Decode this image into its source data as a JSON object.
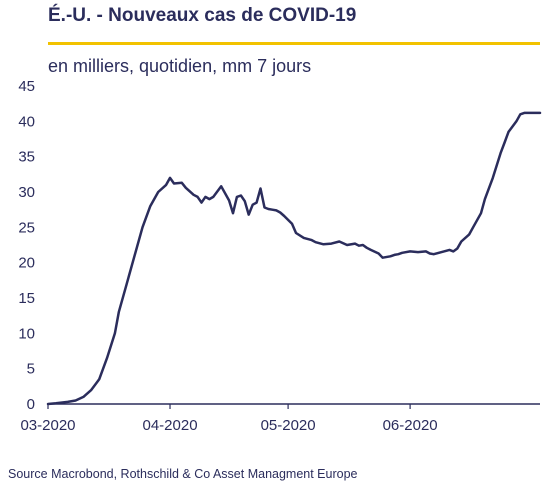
{
  "header": {
    "title": "É.-U. - Nouveaux cas de COVID-19",
    "subtitle": "en milliers, quotidien, mm 7 jours"
  },
  "footer": {
    "source": "Source Macrobond, Rothschild & Co Asset Managment Europe"
  },
  "colors": {
    "line": "#2b2d5c",
    "accent_rule": "#f2c200",
    "text": "#2b2d5c"
  },
  "chart_data": {
    "type": "line",
    "title": "É.-U. - Nouveaux cas de COVID-19",
    "subtitle": "en milliers, quotidien, mm 7 jours",
    "xlabel": "",
    "ylabel": "",
    "x_ticks": [
      "03-2020",
      "04-2020",
      "05-2020",
      "06-2020"
    ],
    "x_tick_dates": [
      "2020-03-01",
      "2020-04-01",
      "2020-05-01",
      "2020-06-01"
    ],
    "ylim": [
      0,
      45
    ],
    "y_ticks": [
      0,
      5,
      10,
      15,
      20,
      25,
      30,
      35,
      40,
      45
    ],
    "grid": false,
    "legend": "none",
    "series": [
      {
        "name": "",
        "x": [
          "2020-03-01",
          "2020-03-03",
          "2020-03-06",
          "2020-03-08",
          "2020-03-10",
          "2020-03-12",
          "2020-03-14",
          "2020-03-15",
          "2020-03-16",
          "2020-03-18",
          "2020-03-19",
          "2020-03-21",
          "2020-03-23",
          "2020-03-25",
          "2020-03-27",
          "2020-03-29",
          "2020-03-31",
          "2020-04-01",
          "2020-04-02",
          "2020-04-04",
          "2020-04-05",
          "2020-04-06",
          "2020-04-07",
          "2020-04-08",
          "2020-04-09",
          "2020-04-10",
          "2020-04-11",
          "2020-04-12",
          "2020-04-14",
          "2020-04-16",
          "2020-04-17",
          "2020-04-18",
          "2020-04-19",
          "2020-04-20",
          "2020-04-21",
          "2020-04-22",
          "2020-04-23",
          "2020-04-24",
          "2020-04-25",
          "2020-04-26",
          "2020-04-27",
          "2020-04-28",
          "2020-04-29",
          "2020-04-30",
          "2020-05-02",
          "2020-05-03",
          "2020-05-05",
          "2020-05-07",
          "2020-05-08",
          "2020-05-10",
          "2020-05-12",
          "2020-05-14",
          "2020-05-16",
          "2020-05-18",
          "2020-05-19",
          "2020-05-20",
          "2020-05-21",
          "2020-05-22",
          "2020-05-24",
          "2020-05-25",
          "2020-05-27",
          "2020-05-28",
          "2020-05-29",
          "2020-05-30",
          "2020-06-01",
          "2020-06-03",
          "2020-06-05",
          "2020-06-06",
          "2020-06-07",
          "2020-06-09",
          "2020-06-11",
          "2020-06-12",
          "2020-06-13",
          "2020-06-14",
          "2020-06-16",
          "2020-06-17",
          "2020-06-19",
          "2020-06-20",
          "2020-06-22",
          "2020-06-24",
          "2020-06-25",
          "2020-06-26",
          "2020-06-28",
          "2020-06-29",
          "2020-06-30",
          "2020-07-01",
          "2020-07-02",
          "2020-07-03",
          "2020-07-04"
        ],
        "values": [
          0,
          0.1,
          0.3,
          0.5,
          1,
          2,
          3.5,
          5,
          6.5,
          10,
          13,
          17,
          21,
          25,
          28,
          30,
          31,
          32,
          31.2,
          31.3,
          30.6,
          30.1,
          29.6,
          29.3,
          28.5,
          29.3,
          29,
          29.3,
          30.8,
          28.8,
          27,
          29.3,
          29.5,
          28.7,
          26.8,
          28.2,
          28.5,
          30.5,
          27.8,
          27.6,
          27.5,
          27.4,
          27.1,
          26.6,
          25.5,
          24.2,
          23.5,
          23.2,
          22.9,
          22.6,
          22.7,
          23,
          22.5,
          22.7,
          22.4,
          22.5,
          22.1,
          21.8,
          21.3,
          20.7,
          20.9,
          21.1,
          21.2,
          21.4,
          21.6,
          21.5,
          21.6,
          21.3,
          21.2,
          21.5,
          21.8,
          21.6,
          22,
          23,
          24,
          25,
          27,
          29,
          32,
          35.5,
          37,
          38.5,
          40,
          41,
          41.2,
          41.2,
          41.2,
          41.2,
          41.2
        ]
      }
    ]
  }
}
